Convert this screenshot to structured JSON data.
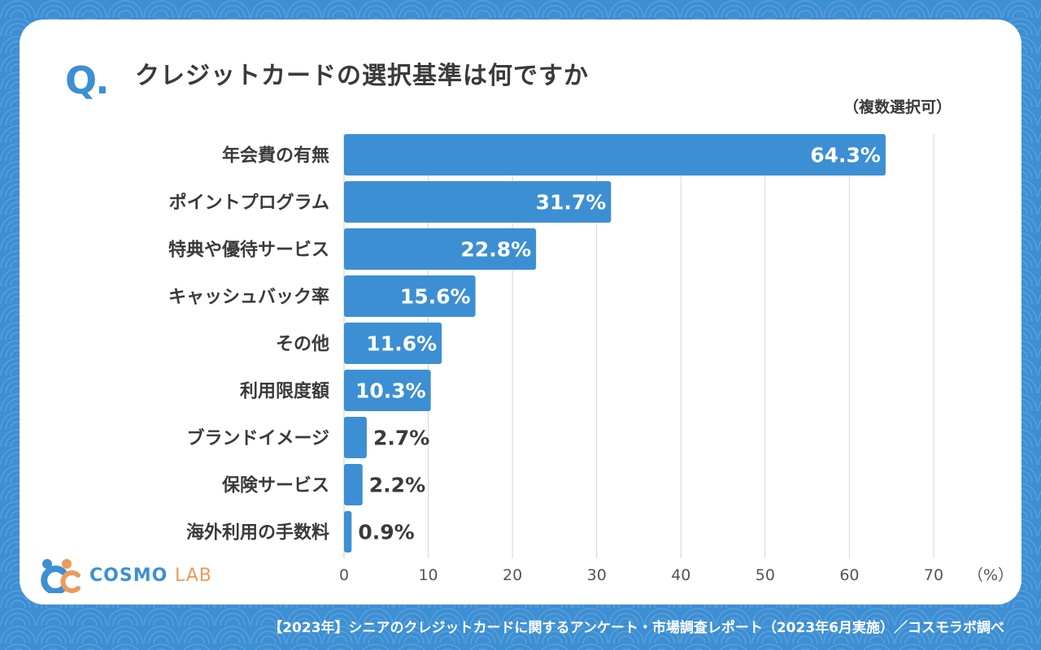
{
  "question_mark": "Q.",
  "title": "クレジットカードの選択基準は何ですか",
  "note": "（複数選択可）",
  "footer": "【2023年】シニアのクレジットカードに関するアンケート・市場調査レポート（2023年6月実施）／コスモラボ調べ",
  "logo": {
    "main": "COSMO",
    "sub": "LAB"
  },
  "colors": {
    "bar": "#3d8fd3",
    "background": "#3d8fd3",
    "text": "#3a3a3a",
    "logo_accent": "#ee9a5a"
  },
  "chart_data": {
    "type": "bar",
    "orientation": "horizontal",
    "categories": [
      "年会費の有無",
      "ポイントプログラム",
      "特典や優待サービス",
      "キャッシュバック率",
      "その他",
      "利用限度額",
      "ブランドイメージ",
      "保険サービス",
      "海外利用の手数料"
    ],
    "values": [
      64.3,
      31.7,
      22.8,
      15.6,
      11.6,
      10.3,
      2.7,
      2.2,
      0.9
    ],
    "data_labels": [
      "64.3%",
      "31.7%",
      "22.8%",
      "15.6%",
      "11.6%",
      "10.3%",
      "2.7%",
      "2.2%",
      "0.9%"
    ],
    "xlim": [
      0,
      70
    ],
    "xticks": [
      "0",
      "10",
      "20",
      "30",
      "40",
      "50",
      "60",
      "70"
    ],
    "xunit": "（%）",
    "grid": true
  }
}
